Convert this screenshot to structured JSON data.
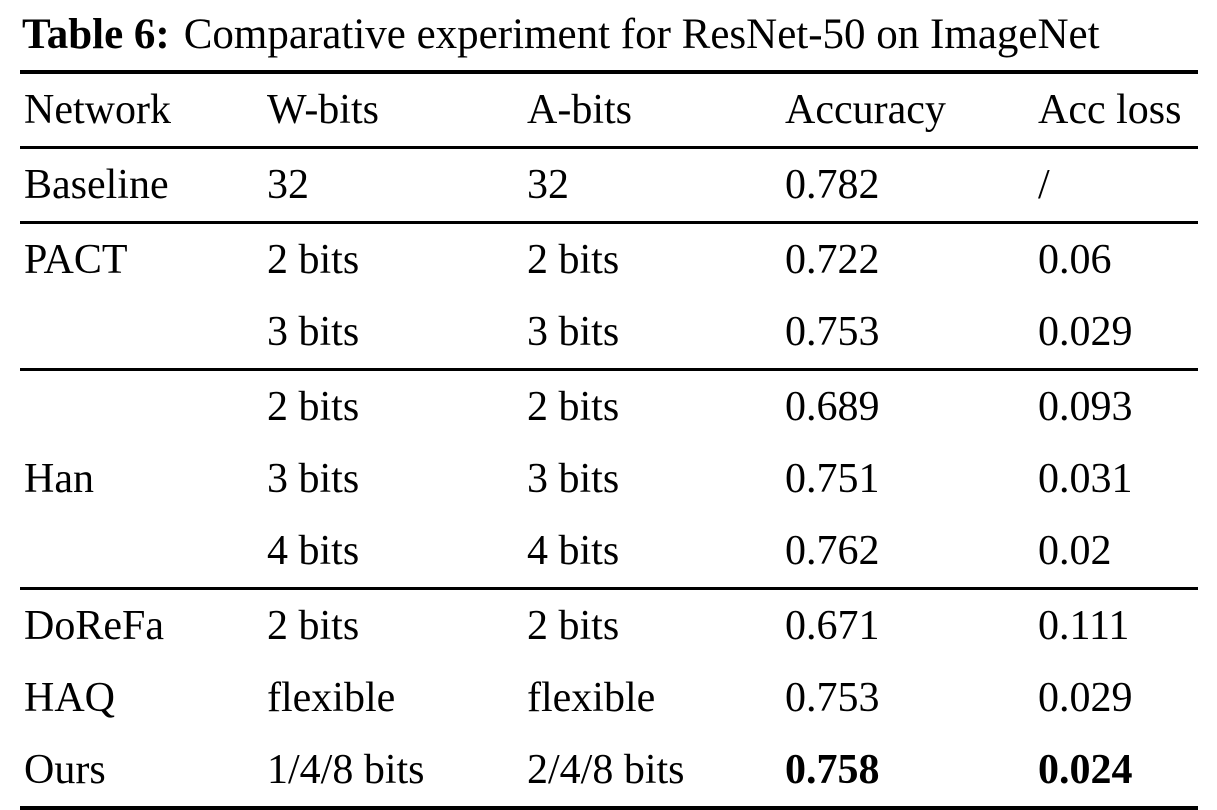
{
  "caption": {
    "label": "Table 6:",
    "text": "Comparative experiment for ResNet-50 on ImageNet"
  },
  "table": {
    "headers": [
      "Network",
      "W-bits",
      "A-bits",
      "Accuracy",
      "Acc loss"
    ],
    "rows": [
      {
        "network": "Baseline",
        "w_bits": "32",
        "a_bits": "32",
        "accuracy": "0.782",
        "acc_loss": "/"
      },
      {
        "network": "PACT",
        "w_bits": "2 bits",
        "a_bits": "2 bits",
        "accuracy": "0.722",
        "acc_loss": "0.06"
      },
      {
        "network": "",
        "w_bits": "3 bits",
        "a_bits": "3 bits",
        "accuracy": "0.753",
        "acc_loss": "0.029"
      },
      {
        "network": "",
        "w_bits": "2 bits",
        "a_bits": "2 bits",
        "accuracy": "0.689",
        "acc_loss": "0.093"
      },
      {
        "network": "Han",
        "w_bits": "3 bits",
        "a_bits": "3 bits",
        "accuracy": "0.751",
        "acc_loss": "0.031"
      },
      {
        "network": "",
        "w_bits": "4 bits",
        "a_bits": "4 bits",
        "accuracy": "0.762",
        "acc_loss": "0.02"
      },
      {
        "network": "DoReFa",
        "w_bits": "2 bits",
        "a_bits": "2 bits",
        "accuracy": "0.671",
        "acc_loss": "0.111"
      },
      {
        "network": "HAQ",
        "w_bits": "flexible",
        "a_bits": "flexible",
        "accuracy": "0.753",
        "acc_loss": "0.029"
      },
      {
        "network": "Ours",
        "w_bits": "1/4/8 bits",
        "a_bits": "2/4/8 bits",
        "accuracy": "0.758",
        "acc_loss": "0.024"
      }
    ]
  }
}
